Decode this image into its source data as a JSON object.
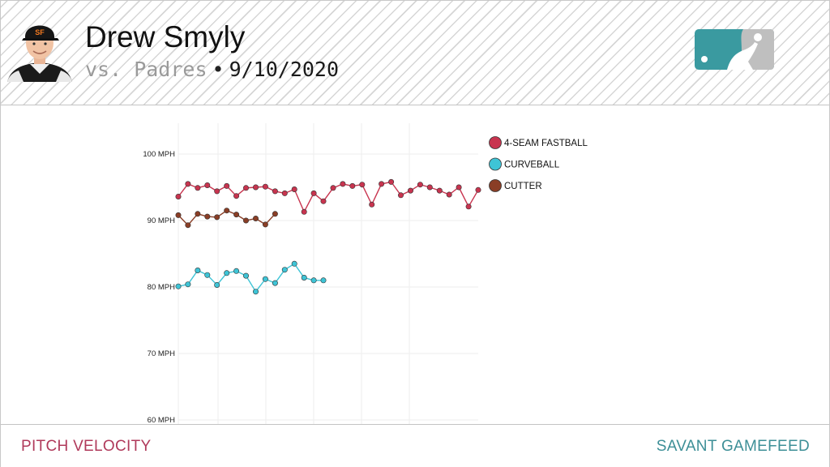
{
  "header": {
    "player_name": "Drew Smyly",
    "opponent": "vs. Padres",
    "separator": "•",
    "date": "9/10/2020"
  },
  "icons": {
    "avatar": "player-headshot-icon",
    "logo": "mlb-logo-icon"
  },
  "footer": {
    "left_label": "PITCH VELOCITY",
    "right_label": "SAVANT GAMEFEED"
  },
  "colors": {
    "fastball": "#c8344f",
    "curveball": "#3ec4d6",
    "cutter": "#8a3e26",
    "footer_left": "#b03a5b",
    "footer_right": "#3d8f97"
  },
  "chart_data": {
    "type": "line",
    "title": "",
    "xlabel": "",
    "ylabel": "",
    "ylim": [
      60,
      105
    ],
    "yticks": [
      {
        "value": 100,
        "label": "100 MPH"
      },
      {
        "value": 90,
        "label": "90 MPH"
      },
      {
        "value": 80,
        "label": "80 MPH"
      },
      {
        "value": 70,
        "label": "70 MPH"
      },
      {
        "value": 60,
        "label": "60 MPH"
      }
    ],
    "x_count": 32,
    "grid": true,
    "legend_position": "top-right",
    "series": [
      {
        "name": "4-SEAM FASTBALL",
        "color": "#c8344f",
        "points": [
          [
            0,
            93.6
          ],
          [
            1,
            95.5
          ],
          [
            2,
            94.9
          ],
          [
            3,
            95.3
          ],
          [
            4,
            94.4
          ],
          [
            5,
            95.2
          ],
          [
            6,
            93.7
          ],
          [
            7,
            94.9
          ],
          [
            8,
            95.0
          ],
          [
            9,
            95.1
          ],
          [
            10,
            94.4
          ],
          [
            11,
            94.1
          ],
          [
            12,
            94.7
          ],
          [
            13,
            91.3
          ],
          [
            14,
            94.1
          ],
          [
            15,
            92.9
          ],
          [
            16,
            94.9
          ],
          [
            17,
            95.5
          ],
          [
            18,
            95.2
          ],
          [
            19,
            95.4
          ],
          [
            20,
            92.4
          ],
          [
            21,
            95.5
          ],
          [
            22,
            95.8
          ],
          [
            23,
            93.8
          ],
          [
            24,
            94.5
          ],
          [
            25,
            95.4
          ],
          [
            26,
            95.0
          ],
          [
            27,
            94.5
          ],
          [
            28,
            93.9
          ],
          [
            29,
            95.0
          ],
          [
            30,
            92.1
          ],
          [
            31,
            94.6
          ]
        ]
      },
      {
        "name": "CURVEBALL",
        "color": "#3ec4d6",
        "points": [
          [
            0,
            80.1
          ],
          [
            1,
            80.4
          ],
          [
            2,
            82.5
          ],
          [
            3,
            81.8
          ],
          [
            4,
            80.3
          ],
          [
            5,
            82.1
          ],
          [
            6,
            82.4
          ],
          [
            7,
            81.7
          ],
          [
            8,
            79.3
          ],
          [
            9,
            81.2
          ],
          [
            10,
            80.6
          ],
          [
            11,
            82.6
          ],
          [
            12,
            83.5
          ],
          [
            13,
            81.4
          ],
          [
            14,
            81.0
          ],
          [
            15,
            81.0
          ]
        ]
      },
      {
        "name": "CUTTER",
        "color": "#8a3e26",
        "points": [
          [
            0,
            90.8
          ],
          [
            1,
            89.3
          ],
          [
            2,
            91.0
          ],
          [
            3,
            90.6
          ],
          [
            4,
            90.5
          ],
          [
            5,
            91.5
          ],
          [
            6,
            90.9
          ],
          [
            7,
            90.0
          ],
          [
            8,
            90.3
          ],
          [
            9,
            89.4
          ],
          [
            10,
            91.0
          ]
        ]
      }
    ]
  }
}
